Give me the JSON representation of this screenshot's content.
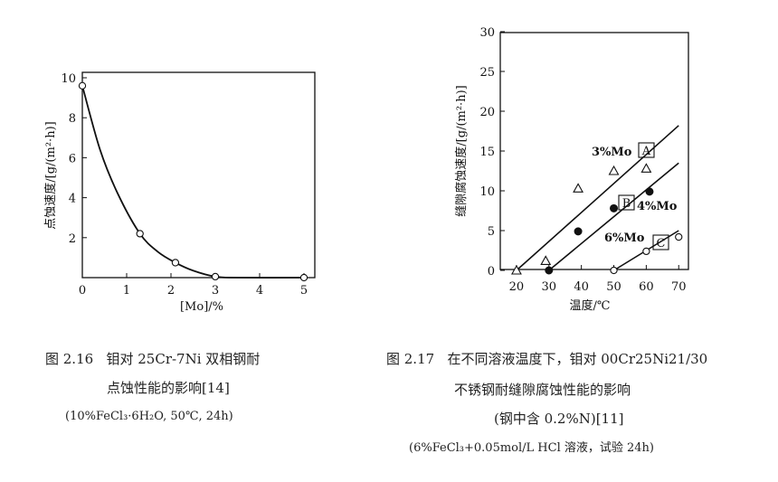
{
  "figure1": {
    "ylabel": "点蚀速度/[g/(m²·h)]",
    "xlabel": "[Mo]/%",
    "caption_number": "图 2.16",
    "caption_line1": "钼对 25Cr-7Ni 双相钢耐",
    "caption_line2": "点蚀性能的影响[14]",
    "caption_line3": "(10%FeCl₃·6H₂O, 50℃, 24h)"
  },
  "figure2": {
    "ylabel": "缝隙腐蚀速度/[g/(m²·h)]",
    "xlabel": "温度/℃",
    "caption_number": "图 2.17",
    "caption_line1": "在不同溶液温度下，钼对 00Cr25Ni21/30",
    "caption_line2": "不锈钢耐缝隙腐蚀性能的影响",
    "caption_line3": "(钢中含 0.2%N)[11]",
    "caption_line4": "(6%FeCl₃+0.05mol/L HCl 溶液，试验 24h)",
    "label_A": "3%Mo",
    "label_B": "4%Mo",
    "label_C": "6%Mo",
    "box_A": "A",
    "box_B": "B",
    "box_C": "C"
  },
  "chart_data": [
    {
      "type": "line",
      "xlabel": "[Mo]/%",
      "ylabel": "点蚀速度/[g/(m²·h)]",
      "xlim": [
        0,
        5
      ],
      "ylim": [
        0,
        10
      ],
      "xticks": [
        "0",
        "1",
        "2",
        "3",
        "4",
        "5"
      ],
      "yticks": [
        "2",
        "4",
        "6",
        "8",
        "10"
      ],
      "grid": false,
      "series": [
        {
          "marker": "open-circle",
          "points": [
            [
              0,
              9.6
            ],
            [
              1.3,
              2.2
            ],
            [
              2.1,
              0.75
            ],
            [
              3.0,
              0.05
            ],
            [
              5.0,
              0.0
            ]
          ]
        }
      ],
      "curve": [
        [
          0,
          9.6
        ],
        [
          0.4,
          6.4
        ],
        [
          0.8,
          4.2
        ],
        [
          1.3,
          2.2
        ],
        [
          1.7,
          1.3
        ],
        [
          2.1,
          0.75
        ],
        [
          2.5,
          0.35
        ],
        [
          3.0,
          0.05
        ],
        [
          3.5,
          0.0
        ],
        [
          5.0,
          0.0
        ]
      ]
    },
    {
      "type": "scatter",
      "xlabel": "温度/℃",
      "ylabel": "缝隙腐蚀速度/[g/(m²·h)]",
      "xlim": [
        15,
        73
      ],
      "ylim": [
        0,
        30
      ],
      "xticks": [
        "20",
        "30",
        "40",
        "50",
        "60",
        "70"
      ],
      "yticks": [
        "0",
        "5",
        "10",
        "15",
        "20",
        "25",
        "30"
      ],
      "grid": false,
      "series": [
        {
          "name": "3%Mo",
          "marker": "open-triangle",
          "points": [
            [
              20,
              0
            ],
            [
              29,
              1.2
            ],
            [
              39,
              10.3
            ],
            [
              50,
              12.5
            ],
            [
              60,
              12.8
            ]
          ],
          "fit": [
            [
              20,
              0
            ],
            [
              70,
              18.2
            ]
          ]
        },
        {
          "name": "4%Mo",
          "marker": "filled-circle",
          "points": [
            [
              30,
              0
            ],
            [
              39,
              4.9
            ],
            [
              50,
              7.8
            ],
            [
              61,
              9.9
            ]
          ],
          "fit": [
            [
              30,
              0
            ],
            [
              70,
              13.5
            ]
          ]
        },
        {
          "name": "6%Mo",
          "marker": "open-circle",
          "points": [
            [
              50,
              0
            ],
            [
              60,
              2.4
            ],
            [
              70,
              4.2
            ]
          ],
          "fit": [
            [
              50,
              0
            ],
            [
              70,
              5.0
            ]
          ]
        }
      ]
    }
  ]
}
